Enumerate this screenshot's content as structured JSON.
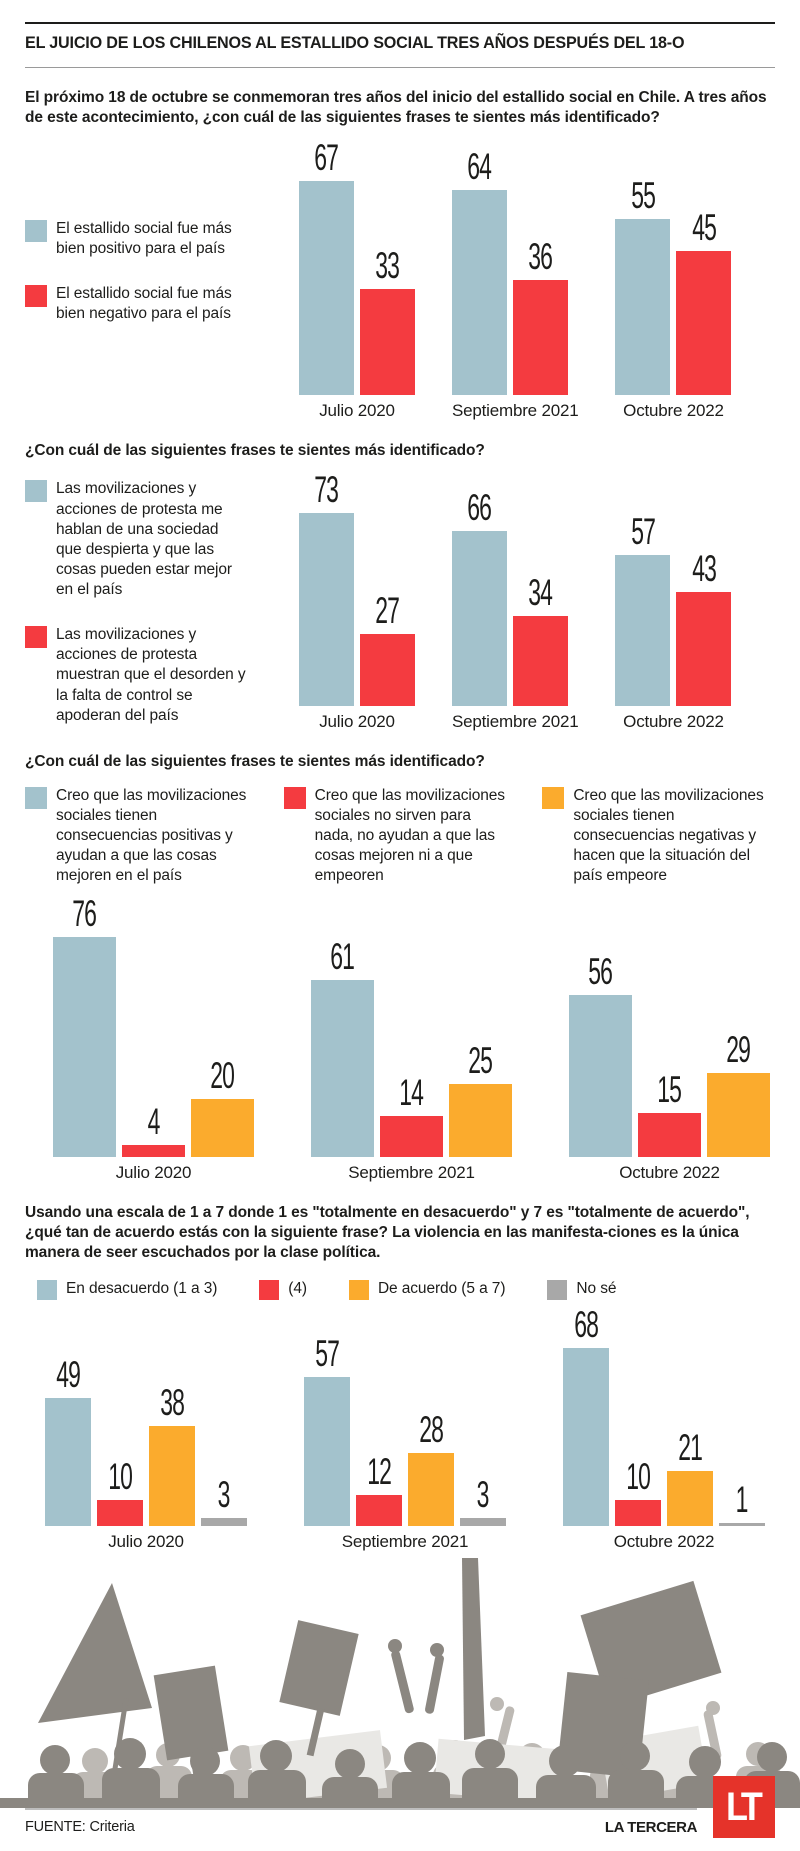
{
  "header": {
    "title": "EL JUICIO DE LOS CHILENOS AL ESTALLIDO SOCIAL TRES AÑOS DESPUÉS DEL 18-O"
  },
  "colors": {
    "positive_blue": "#a3c2cc",
    "negative_red": "#f43b40",
    "agree_orange": "#fbab2d",
    "dontknow_gray": "#a8a8a8",
    "logo_red": "#e5332a",
    "text": "#1d1d1b"
  },
  "chart_data": [
    {
      "type": "bar",
      "title": "El próximo 18 de octubre se conmemoran tres años del inicio del estallido social en Chile. A tres años de este acontecimiento, ¿con cuál de las siguientes frases te sientes más identificado?",
      "categories": [
        "Julio 2020",
        "Septiembre 2021",
        "Octubre 2022"
      ],
      "series": [
        {
          "name": "El estallido social fue más bien positivo para el país",
          "color": "#a3c2cc",
          "values": [
            67,
            64,
            55
          ]
        },
        {
          "name": "El estallido social fue más bien negativo para el país",
          "color": "#f43b40",
          "values": [
            33,
            36,
            45
          ]
        }
      ],
      "xlabel": "",
      "ylabel": "",
      "ylim": [
        0,
        100
      ],
      "grid": false,
      "legend_position": "left"
    },
    {
      "type": "bar",
      "title": "¿Con cuál de las siguientes frases te sientes más identificado?",
      "categories": [
        "Julio 2020",
        "Septiembre 2021",
        "Octubre 2022"
      ],
      "series": [
        {
          "name": "Las movilizaciones y acciones de protesta me hablan de una sociedad que despierta y que las cosas pueden estar mejor en el país",
          "color": "#a3c2cc",
          "values": [
            73,
            66,
            57
          ]
        },
        {
          "name": "Las movilizaciones y acciones de protesta muestran que el desorden y la falta de control se apoderan del país",
          "color": "#f43b40",
          "values": [
            27,
            34,
            43
          ]
        }
      ],
      "xlabel": "",
      "ylabel": "",
      "ylim": [
        0,
        100
      ],
      "grid": false,
      "legend_position": "left"
    },
    {
      "type": "bar",
      "title": "¿Con cuál de las siguientes frases te sientes más identificado?",
      "categories": [
        "Julio 2020",
        "Septiembre 2021",
        "Octubre 2022"
      ],
      "series": [
        {
          "name": "Creo que las movilizaciones sociales tienen consecuencias positivas y ayudan a que las cosas mejoren en el país",
          "color": "#a3c2cc",
          "values": [
            76,
            61,
            56
          ]
        },
        {
          "name": "Creo que las movilizaciones sociales no sirven para nada, no ayudan a que las cosas mejoren ni a que empeoren",
          "color": "#f43b40",
          "values": [
            4,
            14,
            15
          ]
        },
        {
          "name": "Creo que las movilizaciones sociales tienen consecuencias negativas y hacen que la situación del país empeore",
          "color": "#fbab2d",
          "values": [
            20,
            25,
            29
          ]
        }
      ],
      "xlabel": "",
      "ylabel": "",
      "ylim": [
        0,
        100
      ],
      "grid": false,
      "legend_position": "top-columns"
    },
    {
      "type": "bar",
      "title": "Usando una escala de 1 a 7 donde 1 es \"totalmente en desacuerdo\" y 7 es \"totalmente de acuerdo\", ¿qué tan de acuerdo estás con la siguiente frase? La violencia en las manifesta-ciones es la única manera de seer escuchados por la clase política.",
      "categories": [
        "Julio 2020",
        "Septiembre 2021",
        "Octubre 2022"
      ],
      "series": [
        {
          "name": "En desacuerdo (1 a 3)",
          "color": "#a3c2cc",
          "values": [
            49,
            57,
            68
          ]
        },
        {
          "name": "(4)",
          "color": "#f43b40",
          "values": [
            10,
            12,
            10
          ]
        },
        {
          "name": "De acuerdo (5 a 7)",
          "color": "#fbab2d",
          "values": [
            38,
            28,
            21
          ]
        },
        {
          "name": "No sé",
          "color": "#a8a8a8",
          "values": [
            3,
            3,
            1
          ]
        }
      ],
      "xlabel": "",
      "ylabel": "",
      "ylim": [
        0,
        100
      ],
      "grid": false,
      "legend_position": "top-inline"
    }
  ],
  "footer": {
    "source": "FUENTE: Criteria",
    "brand": "LA TERCERA",
    "logo": "LT"
  }
}
